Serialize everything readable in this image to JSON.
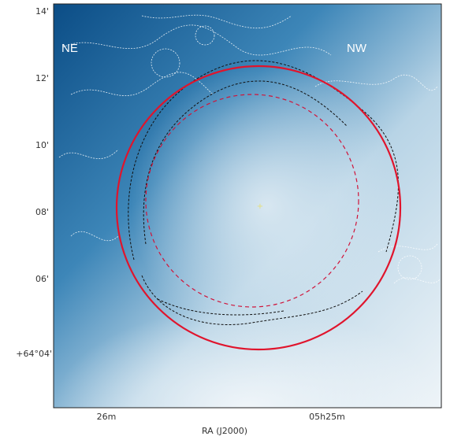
{
  "figure": {
    "corner_labels": [
      "NE",
      "NW"
    ],
    "yticks": [
      "14'",
      "12'",
      "10'",
      "08'",
      "06'",
      "+64°04'"
    ],
    "xticks": [
      "26m",
      "05h25m"
    ],
    "xlabel": "RA (J2000)"
  }
}
